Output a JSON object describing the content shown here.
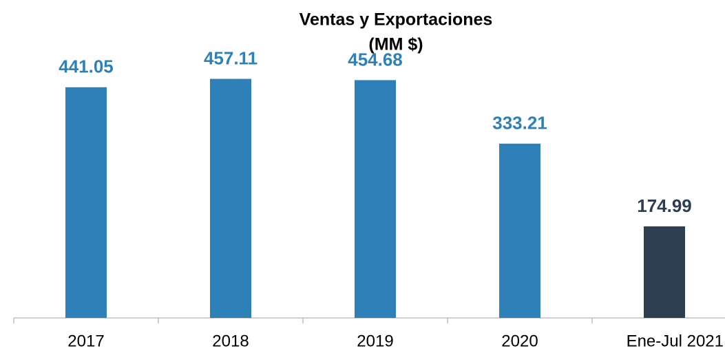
{
  "chart_data": {
    "type": "bar",
    "title": [
      "Ventas y Exportaciones",
      "(MM $)"
    ],
    "categories": [
      "2017",
      "2018",
      "2019",
      "2020",
      "Ene-Jul 2021"
    ],
    "values": [
      441.05,
      457.11,
      454.68,
      333.21,
      174.99
    ],
    "colors": [
      "#2e80b9",
      "#2e80b9",
      "#2e80b9",
      "#2e80b9",
      "#2c3e50"
    ],
    "ylim": [
      0,
      600
    ]
  }
}
